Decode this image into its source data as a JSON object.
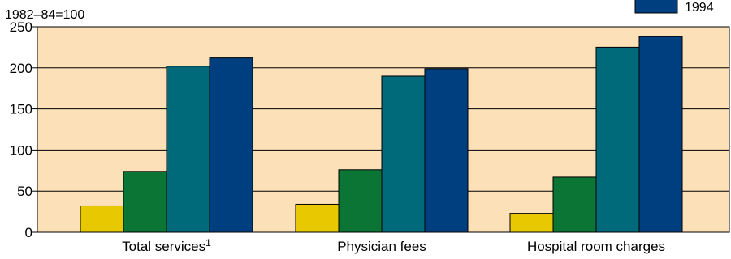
{
  "chart_data": {
    "type": "bar",
    "unit_label": "1982–84=100",
    "categories": [
      "Total services",
      "Physician fees",
      "Hospital room charges"
    ],
    "category_footnotes": [
      "1",
      "",
      ""
    ],
    "ylim": [
      0,
      250
    ],
    "yticks": [
      0,
      50,
      100,
      150,
      200,
      250
    ],
    "grid": true,
    "series": [
      {
        "values": [
          32,
          34,
          23
        ],
        "color": "#e8c800"
      },
      {
        "values": [
          74,
          76,
          67
        ],
        "color": "#0a7535"
      },
      {
        "values": [
          202,
          190,
          225
        ],
        "color": "#006a7a"
      },
      {
        "name": "1994",
        "values": [
          212,
          199,
          238
        ],
        "color": "#003f7f"
      }
    ],
    "legend": {
      "placement": "top-right",
      "visible_entries": [
        "1994"
      ]
    },
    "plot_background": "#fbe0b8"
  }
}
